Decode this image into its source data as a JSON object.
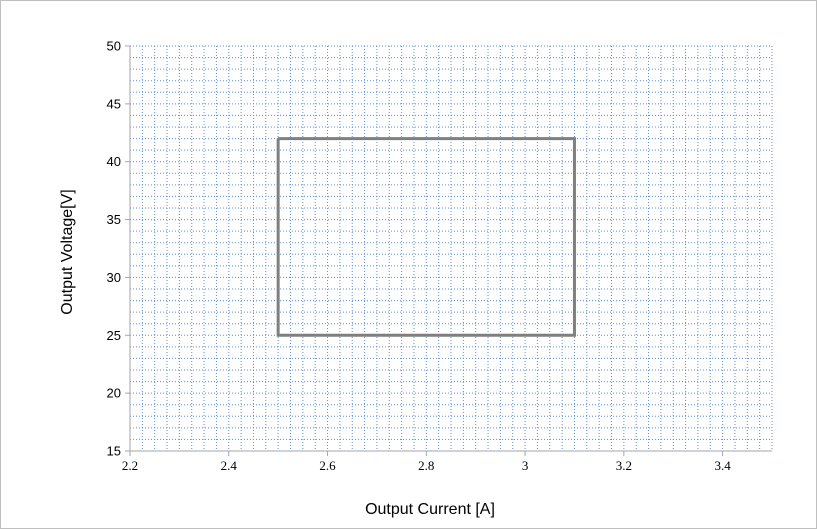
{
  "chart_data": {
    "type": "line",
    "title": "",
    "xlabel": "Output Current [A]",
    "ylabel": "Output Voltage[V]",
    "xlim": [
      2.2,
      3.5
    ],
    "ylim": [
      15,
      50
    ],
    "x_ticks": [
      "2.2",
      "2.4",
      "2.6",
      "2.8",
      "3",
      "3.2",
      "3.4"
    ],
    "y_ticks": [
      "15",
      "20",
      "25",
      "30",
      "35",
      "40",
      "45",
      "50"
    ],
    "grid": true,
    "grid_style": "dotted minor grid",
    "series": [
      {
        "x": [
          2.5,
          3.1,
          3.1,
          2.5,
          2.5
        ],
        "y": [
          42,
          42,
          25,
          25,
          42
        ],
        "color": "#7f7f7f"
      }
    ],
    "colors": {
      "grid": "#5b8fd4",
      "series": "#7f7f7f",
      "axis": "#a6a6a6"
    }
  }
}
